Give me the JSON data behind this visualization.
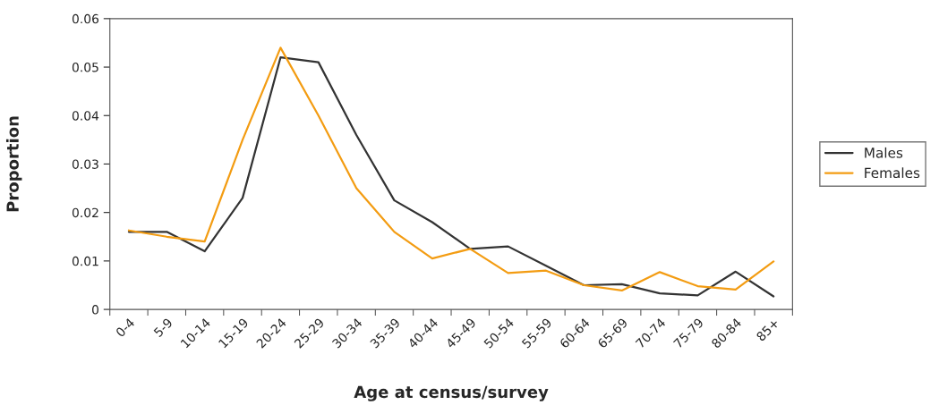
{
  "chart_data": {
    "type": "line",
    "xlabel": "Age at census/survey",
    "ylabel": "Proportion",
    "categories": [
      "0-4",
      "5-9",
      "10-14",
      "15-19",
      "20-24",
      "25-29",
      "30-34",
      "35-39",
      "40-44",
      "45-49",
      "50-54",
      "55-59",
      "60-64",
      "65-69",
      "70-74",
      "75-79",
      "80-84",
      "85+"
    ],
    "series": [
      {
        "name": "Males",
        "color": "#333333",
        "values": [
          0.016,
          0.016,
          0.012,
          0.023,
          0.052,
          0.051,
          0.036,
          0.0225,
          0.018,
          0.0125,
          0.013,
          0.009,
          0.005,
          0.0052,
          0.0033,
          0.0029,
          0.0078,
          0.0027
        ]
      },
      {
        "name": "Females",
        "color": "#f39c12",
        "values": [
          0.0163,
          0.015,
          0.014,
          0.035,
          0.054,
          0.04,
          0.025,
          0.016,
          0.0105,
          0.0125,
          0.0075,
          0.008,
          0.005,
          0.0039,
          0.0077,
          0.0048,
          0.0041,
          0.0099
        ]
      }
    ],
    "ylim": [
      0,
      0.06
    ],
    "yticks": [
      0,
      0.01,
      0.02,
      0.03,
      0.04,
      0.05,
      0.06
    ],
    "grid": false,
    "legend": "right",
    "marker": "none",
    "line_style": "solid"
  }
}
